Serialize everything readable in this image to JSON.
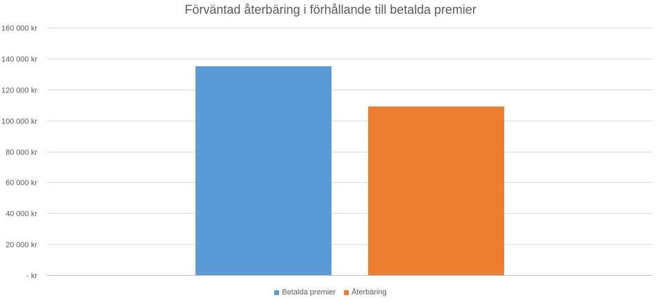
{
  "chart_data": {
    "type": "bar",
    "title": "Förväntad återbäring i förhållande till betalda premier",
    "categories": [
      "Betalda premier",
      "Återbäring"
    ],
    "values": [
      135000,
      109000
    ],
    "colors": [
      "#5B9BD5",
      "#ED7D31"
    ],
    "ylim": [
      0,
      160000
    ],
    "yticks": [
      0,
      20000,
      40000,
      60000,
      80000,
      100000,
      120000,
      140000,
      160000
    ],
    "ytick_labels": [
      "-   kr",
      "20 000 kr",
      "40 000 kr",
      "60 000 kr",
      "80 000 kr",
      "100 000 kr",
      "120 000 kr",
      "140 000 kr",
      "160 000 kr"
    ],
    "grid": true,
    "legend_position": "bottom",
    "legend": [
      {
        "label": "Betalda premier",
        "color": "#5B9BD5"
      },
      {
        "label": "Återbäring",
        "color": "#ED7D31"
      }
    ]
  }
}
